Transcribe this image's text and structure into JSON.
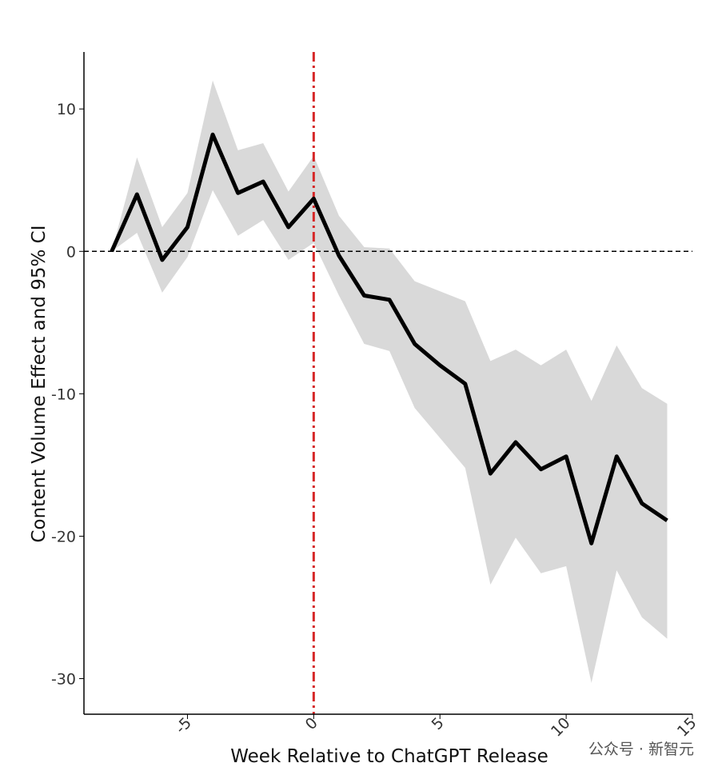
{
  "chart_data": {
    "type": "line",
    "x_label": "Week Relative to ChatGPT Release",
    "y_label": "Content Volume Effect and 95% CI",
    "x": [
      -8,
      -7,
      -6,
      -5,
      -4,
      -3,
      -2,
      -1,
      0,
      1,
      2,
      3,
      4,
      5,
      6,
      7,
      8,
      9,
      10,
      11,
      12,
      13,
      14
    ],
    "series": [
      {
        "color": "#000000",
        "band_color": "#d9d9d9",
        "values": [
          0,
          4.0,
          -0.6,
          1.7,
          8.2,
          4.1,
          4.9,
          1.7,
          3.7,
          -0.3,
          -3.1,
          -3.4,
          -6.5,
          -8.0,
          -9.3,
          -15.6,
          -13.4,
          -15.3,
          -14.4,
          -20.5,
          -14.4,
          -17.7,
          -18.9
        ],
        "upper": [
          0,
          6.6,
          1.7,
          4.1,
          12.0,
          7.1,
          7.6,
          4.2,
          6.7,
          2.5,
          0.3,
          0.2,
          -2.1,
          -2.8,
          -3.5,
          -7.7,
          -6.9,
          -8.0,
          -6.9,
          -10.5,
          -6.6,
          -9.6,
          -10.7
        ],
        "lower": [
          0,
          1.3,
          -2.9,
          -0.4,
          4.3,
          1.1,
          2.2,
          -0.6,
          0.6,
          -3.1,
          -6.5,
          -7.0,
          -11.0,
          -13.1,
          -15.2,
          -23.4,
          -20.1,
          -22.6,
          -22.1,
          -30.3,
          -22.4,
          -25.7,
          -27.2
        ]
      }
    ],
    "xlim": [
      -9.1,
      15
    ],
    "ylim": [
      -32.5,
      14
    ],
    "xticks": [
      -5,
      0,
      5,
      10,
      15
    ],
    "yticks": [
      -30,
      -20,
      -10,
      0,
      10
    ],
    "vline": {
      "x": 0,
      "color": "#d62728"
    },
    "hline": {
      "y": 0,
      "color": "#000000"
    },
    "watermark": "公众号 · 新智元"
  }
}
